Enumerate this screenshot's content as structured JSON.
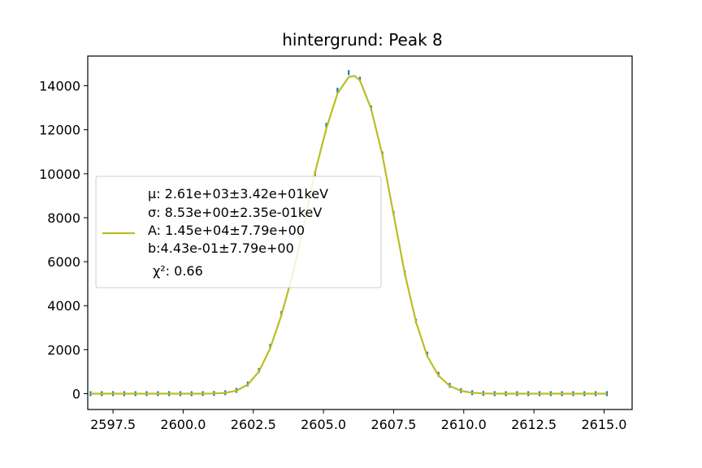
{
  "chart_data": {
    "type": "line",
    "title": "hintergrund: Peak 8",
    "xlabel": "",
    "ylabel": "",
    "xlim": [
      2596.6,
      2616.0
    ],
    "ylim": [
      -720,
      15350
    ],
    "x_ticks": [
      "2597.5",
      "2600.0",
      "2602.5",
      "2605.0",
      "2607.5",
      "2610.0",
      "2612.5",
      "2615.0"
    ],
    "y_ticks": [
      "0",
      "2000",
      "4000",
      "6000",
      "8000",
      "10000",
      "12000",
      "14000"
    ],
    "grid": false,
    "legend_position": "center-left",
    "legend_lines": [
      "μ: 2.61e+03±3.42e+01keV",
      "σ: 8.53e+00±2.35e-01keV",
      "A: 1.45e+04±7.79e+00",
      "b:4.43e-01±7.79e+00",
      "χ²: 0.66"
    ],
    "series": [
      {
        "kind": "data",
        "color": "#1f77b4",
        "x": [
          2596.7,
          2597.1,
          2597.5,
          2597.9,
          2598.3,
          2598.7,
          2599.1,
          2599.5,
          2599.9,
          2600.3,
          2600.7,
          2601.1,
          2601.5,
          2601.9,
          2602.3,
          2602.7,
          2603.1,
          2603.5,
          2603.9,
          2604.3,
          2604.7,
          2605.1,
          2605.5,
          2605.9,
          2606.3,
          2606.7,
          2607.1,
          2607.5,
          2607.9,
          2608.3,
          2608.7,
          2609.1,
          2609.5,
          2609.9,
          2610.3,
          2610.7,
          2611.1,
          2611.5,
          2611.9,
          2612.3,
          2612.7,
          2613.1,
          2613.5,
          2613.9,
          2614.3,
          2614.7,
          2615.1
        ],
        "y": [
          0,
          0,
          0,
          0,
          0,
          0,
          0,
          0,
          0,
          0,
          2,
          10,
          42,
          150,
          440,
          1060,
          2150,
          3650,
          5450,
          7600,
          10000,
          12200,
          13800,
          14600,
          14300,
          13000,
          10900,
          8200,
          5500,
          3300,
          1800,
          880,
          380,
          140,
          44,
          12,
          3,
          0,
          0,
          0,
          0,
          0,
          0,
          0,
          0,
          0,
          0
        ]
      },
      {
        "kind": "fit",
        "color": "#bcbd22",
        "x": [
          2596.7,
          2597.1,
          2597.5,
          2597.9,
          2598.3,
          2598.7,
          2599.1,
          2599.5,
          2599.9,
          2600.3,
          2600.7,
          2601.1,
          2601.5,
          2601.9,
          2602.3,
          2602.7,
          2603.1,
          2603.5,
          2603.9,
          2604.3,
          2604.7,
          2605.1,
          2605.5,
          2605.9,
          2606.1,
          2606.3,
          2606.7,
          2607.1,
          2607.5,
          2607.9,
          2608.3,
          2608.7,
          2609.1,
          2609.5,
          2609.9,
          2610.3,
          2610.7,
          2611.1,
          2611.5,
          2611.9,
          2612.3,
          2612.7,
          2613.1,
          2613.5,
          2613.9,
          2614.3,
          2614.7,
          2615.1
        ],
        "y": [
          0,
          0,
          0,
          0,
          0,
          0,
          0,
          0,
          0,
          0,
          2,
          9,
          38,
          135,
          410,
          1000,
          2060,
          3560,
          5400,
          7650,
          10050,
          12050,
          13650,
          14400,
          14450,
          14250,
          12950,
          10850,
          8150,
          5450,
          3250,
          1700,
          820,
          350,
          130,
          40,
          10,
          2,
          0,
          0,
          0,
          0,
          0,
          0,
          0,
          0,
          0,
          0
        ]
      }
    ]
  }
}
